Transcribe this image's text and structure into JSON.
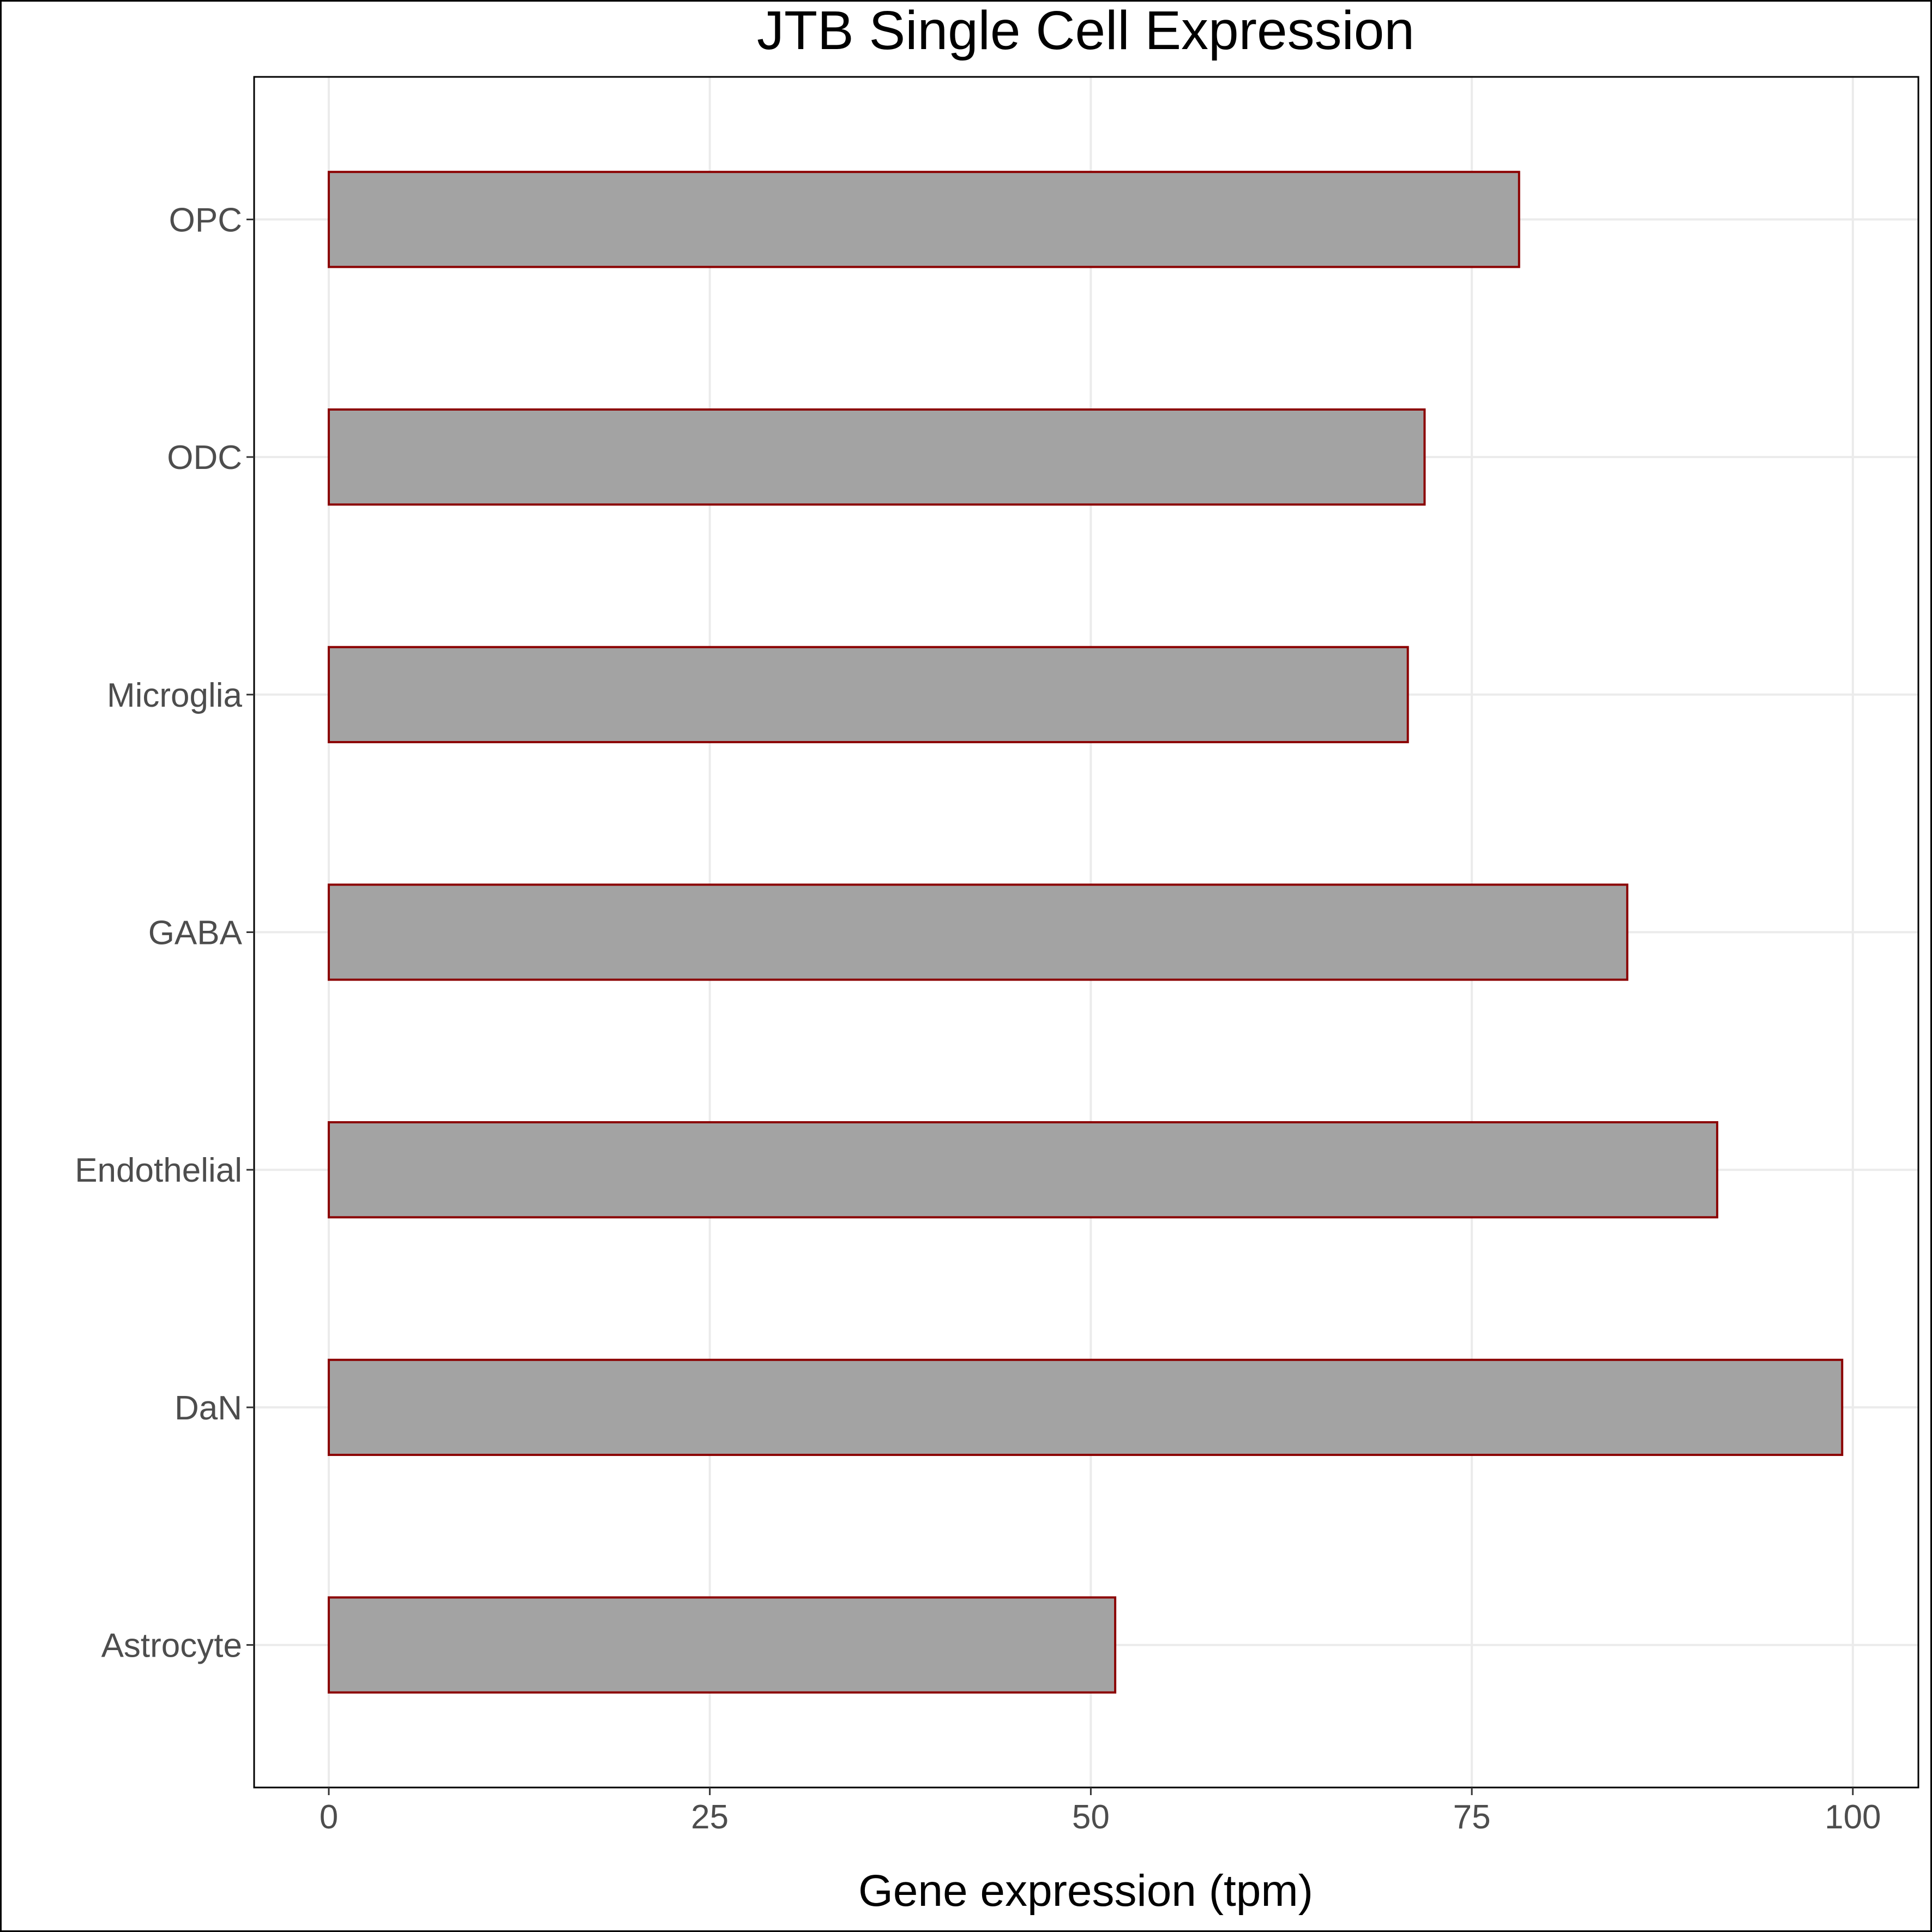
{
  "chart_data": {
    "type": "bar",
    "orientation": "horizontal",
    "title": "JTB Single Cell Expression",
    "xlabel": "Gene expression (tpm)",
    "ylabel": "",
    "categories": [
      "Astrocyte",
      "DaN",
      "Endothelial",
      "GABA",
      "Microglia",
      "ODC",
      "OPC"
    ],
    "values": [
      51.6,
      99.3,
      91.1,
      85.2,
      70.8,
      71.9,
      78.1
    ],
    "xlim": [
      -4.9,
      104.3
    ],
    "xticks": [
      0,
      25,
      50,
      75,
      100
    ],
    "grid": true,
    "legend": "none",
    "bar_fill": "#a3a3a3",
    "bar_edge": "#8b0000",
    "grid_color": "#ebebeb",
    "panel_border": "#000000"
  }
}
